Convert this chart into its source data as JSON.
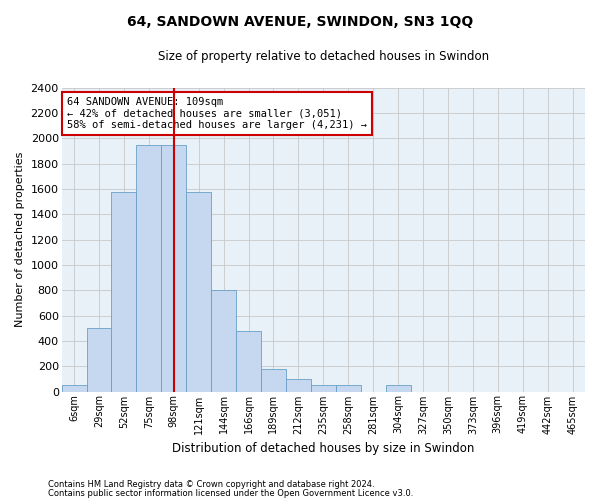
{
  "title": "64, SANDOWN AVENUE, SWINDON, SN3 1QQ",
  "subtitle": "Size of property relative to detached houses in Swindon",
  "xlabel": "Distribution of detached houses by size in Swindon",
  "ylabel": "Number of detached properties",
  "categories": [
    "6sqm",
    "29sqm",
    "52sqm",
    "75sqm",
    "98sqm",
    "121sqm",
    "144sqm",
    "166sqm",
    "189sqm",
    "212sqm",
    "235sqm",
    "258sqm",
    "281sqm",
    "304sqm",
    "327sqm",
    "350sqm",
    "373sqm",
    "396sqm",
    "419sqm",
    "442sqm",
    "465sqm"
  ],
  "values": [
    50,
    500,
    1575,
    1950,
    1950,
    1575,
    800,
    480,
    175,
    100,
    50,
    50,
    0,
    50,
    0,
    0,
    0,
    0,
    0,
    0,
    0
  ],
  "bar_color": "#c5d8f0",
  "bar_edge_color": "#6a9fc8",
  "grid_color": "#c8c8c8",
  "bg_color": "#e8f0f8",
  "vline_x_index": 4,
  "vline_color": "#cc0000",
  "annotation_text": "64 SANDOWN AVENUE: 109sqm\n← 42% of detached houses are smaller (3,051)\n58% of semi-detached houses are larger (4,231) →",
  "annotation_box_color": "#cc0000",
  "ylim": [
    0,
    2400
  ],
  "yticks": [
    0,
    200,
    400,
    600,
    800,
    1000,
    1200,
    1400,
    1600,
    1800,
    2000,
    2200,
    2400
  ],
  "footer1": "Contains HM Land Registry data © Crown copyright and database right 2024.",
  "footer2": "Contains public sector information licensed under the Open Government Licence v3.0.",
  "title_fontsize": 10,
  "subtitle_fontsize": 8.5,
  "ylabel_fontsize": 8,
  "xlabel_fontsize": 8.5,
  "ytick_fontsize": 8,
  "xtick_fontsize": 7,
  "footer_fontsize": 6,
  "annot_fontsize": 7.5
}
